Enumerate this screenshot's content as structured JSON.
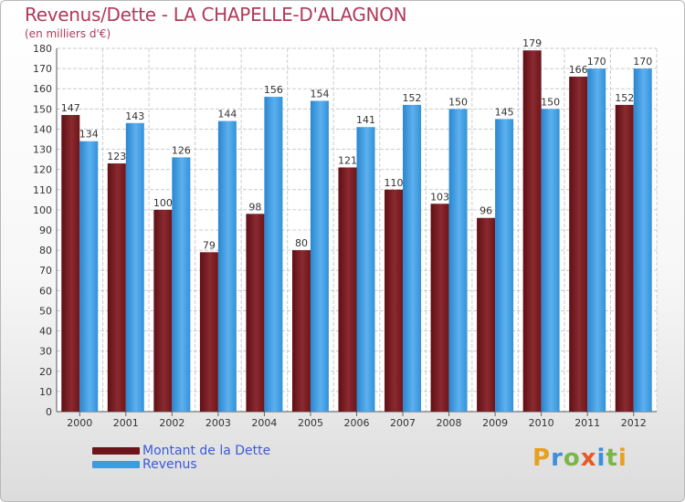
{
  "title": "Revenus/Dette - LA CHAPELLE-D'ALAGNON",
  "subtitle": "(en milliers d'€)",
  "brand": {
    "text": "Proxiti",
    "letters": [
      {
        "ch": "P",
        "color": "#e8a020"
      },
      {
        "ch": "r",
        "color": "#3c8fd8"
      },
      {
        "ch": "o",
        "color": "#7ab648"
      },
      {
        "ch": "x",
        "color": "#e35a25"
      },
      {
        "ch": "i",
        "color": "#3c8fd8"
      },
      {
        "ch": "t",
        "color": "#7ab648"
      },
      {
        "ch": "i",
        "color": "#e8a020"
      }
    ]
  },
  "colors": {
    "dette": "#7d1a1f",
    "revenus": "#3d9be0",
    "grid": "#cccccc"
  },
  "chart_data": {
    "type": "bar",
    "title": "Revenus/Dette - LA CHAPELLE-D'ALAGNON",
    "subtitle": "(en milliers d'€)",
    "categories": [
      "2000",
      "2001",
      "2002",
      "2003",
      "2004",
      "2005",
      "2006",
      "2007",
      "2008",
      "2009",
      "2010",
      "2011",
      "2012"
    ],
    "series": [
      {
        "name": "Montant de la Dette",
        "values": [
          147,
          123,
          100,
          79,
          98,
          80,
          121,
          110,
          103,
          96,
          179,
          166,
          152
        ]
      },
      {
        "name": "Revenus",
        "values": [
          134,
          143,
          126,
          144,
          156,
          154,
          141,
          152,
          150,
          145,
          150,
          170,
          170
        ]
      }
    ],
    "ylim": [
      0,
      180
    ],
    "ytick_step": 10,
    "grid": true,
    "legend_position": "bottom-left"
  }
}
